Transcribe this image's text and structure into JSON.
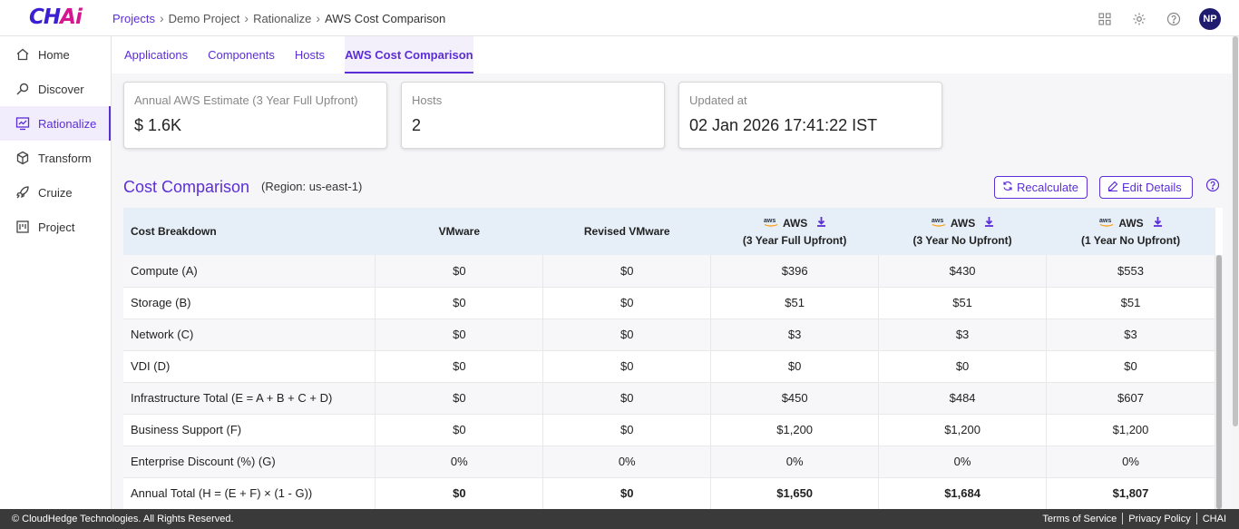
{
  "brand": {
    "logo_main": "CH",
    "logo_accent": "Ai"
  },
  "breadcrumb": [
    "Projects",
    "Demo Project",
    "Rationalize",
    "AWS Cost Comparison"
  ],
  "user": {
    "initials": "NP"
  },
  "sidebar": {
    "items": [
      {
        "label": "Home",
        "icon": "home-icon"
      },
      {
        "label": "Discover",
        "icon": "search-icon"
      },
      {
        "label": "Rationalize",
        "icon": "chart-icon",
        "active": true
      },
      {
        "label": "Transform",
        "icon": "cube-icon"
      },
      {
        "label": "Cruize",
        "icon": "rocket-icon"
      },
      {
        "label": "Project",
        "icon": "project-icon"
      }
    ]
  },
  "tabs": [
    "Applications",
    "Components",
    "Hosts",
    "AWS Cost Comparison"
  ],
  "cards": [
    {
      "label": "Annual AWS Estimate (3 Year Full Upfront)",
      "value": "$ 1.6K"
    },
    {
      "label": "Hosts",
      "value": "2"
    },
    {
      "label": "Updated at",
      "value": "02 Jan 2026 17:41:22 IST"
    }
  ],
  "cost_comparison": {
    "title": "Cost Comparison",
    "region": "(Region: us-east-1)",
    "recalculate_label": "Recalculate",
    "edit_label": "Edit Details"
  },
  "table": {
    "headers": {
      "breakdown": "Cost Breakdown",
      "vmware": "VMware",
      "revised": "Revised VMware",
      "aws_label": "AWS",
      "aws1_sub": "(3 Year Full Upfront)",
      "aws2_sub": "(3 Year No Upfront)",
      "aws3_sub": "(1 Year No Upfront)"
    },
    "rows": [
      {
        "label": "Compute (A)",
        "values": [
          "$0",
          "$0",
          "$396",
          "$430",
          "$553"
        ]
      },
      {
        "label": "Storage (B)",
        "values": [
          "$0",
          "$0",
          "$51",
          "$51",
          "$51"
        ]
      },
      {
        "label": "Network (C)",
        "values": [
          "$0",
          "$0",
          "$3",
          "$3",
          "$3"
        ]
      },
      {
        "label": "VDI (D)",
        "values": [
          "$0",
          "$0",
          "$0",
          "$0",
          "$0"
        ]
      },
      {
        "label": "Infrastructure Total (E = A + B + C + D)",
        "values": [
          "$0",
          "$0",
          "$450",
          "$484",
          "$607"
        ]
      },
      {
        "label": "Business Support (F)",
        "values": [
          "$0",
          "$0",
          "$1,200",
          "$1,200",
          "$1,200"
        ]
      },
      {
        "label": "Enterprise Discount (%) (G)",
        "values": [
          "0%",
          "0%",
          "0%",
          "0%",
          "0%"
        ]
      },
      {
        "label": "Annual Total (H = (E + F) × (1 - G))",
        "values": [
          "$0",
          "$0",
          "$1,650",
          "$1,684",
          "$1,807"
        ]
      }
    ]
  },
  "footer": {
    "copyright": "© CloudHedge Technologies. All Rights Reserved.",
    "links": [
      "Terms of Service",
      "Privacy Policy",
      "CHAI"
    ]
  }
}
